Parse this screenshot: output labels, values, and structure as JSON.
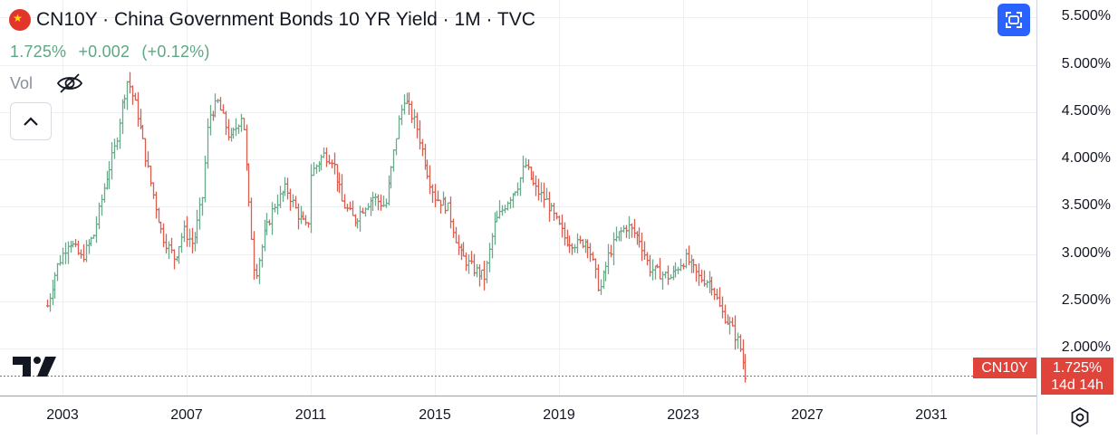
{
  "header": {
    "flag_icon": "china-flag-icon",
    "title": "CN10Y · China Government Bonds 10 YR Yield · 1M · TVC"
  },
  "quote": {
    "last": "1.725%",
    "change": "+0.002",
    "change_pct": "(+0.12%)",
    "color": "#5fa783"
  },
  "volume": {
    "label": "Vol",
    "toggle_icon": "eye-off-icon"
  },
  "controls": {
    "collapse_icon": "chevron-up-icon",
    "fullscreen_icon": "fullscreen-icon",
    "settings_icon": "settings-gear-icon",
    "logo": "tradingview-logo"
  },
  "price_axis": {
    "labels": [
      "5.500%",
      "5.000%",
      "4.500%",
      "4.000%",
      "3.500%",
      "3.000%",
      "2.500%",
      "2.000%"
    ],
    "last_price_label": "1.725%",
    "countdown": "14d 14h",
    "symbol_tag": "CN10Y"
  },
  "time_axis": {
    "labels": [
      "2003",
      "2007",
      "2011",
      "2015",
      "2019",
      "2023",
      "2027",
      "2031"
    ]
  },
  "colors": {
    "up": "#6aaa8b",
    "down": "#dd5d4f",
    "accent": "#2962ff",
    "grid": "#eef0f3"
  },
  "chart_data": {
    "type": "ohlc",
    "symbol": "CN10Y",
    "interval": "1M",
    "ylim": [
      1.5,
      5.6
    ],
    "xlim": [
      2001.7,
      2034.5
    ],
    "price_ticks": [
      2.0,
      2.5,
      3.0,
      3.5,
      4.0,
      4.5,
      5.0,
      5.5
    ],
    "year_ticks": [
      2003,
      2007,
      2011,
      2015,
      2019,
      2023,
      2027,
      2031
    ],
    "grid": true,
    "approx_closes": [
      [
        2002.5,
        2.45
      ],
      [
        2002.8,
        2.85
      ],
      [
        2003.2,
        3.15
      ],
      [
        2003.6,
        2.95
      ],
      [
        2004.0,
        3.2
      ],
      [
        2004.4,
        3.8
      ],
      [
        2004.7,
        4.15
      ],
      [
        2004.9,
        4.55
      ],
      [
        2005.1,
        4.85
      ],
      [
        2005.4,
        4.5
      ],
      [
        2005.8,
        3.8
      ],
      [
        2006.2,
        3.2
      ],
      [
        2006.6,
        2.95
      ],
      [
        2006.9,
        3.25
      ],
      [
        2007.2,
        3.1
      ],
      [
        2007.5,
        3.6
      ],
      [
        2007.7,
        4.45
      ],
      [
        2008.0,
        4.6
      ],
      [
        2008.4,
        4.2
      ],
      [
        2008.8,
        4.5
      ],
      [
        2009.0,
        3.5
      ],
      [
        2009.2,
        2.75
      ],
      [
        2009.5,
        3.2
      ],
      [
        2009.8,
        3.5
      ],
      [
        2010.2,
        3.7
      ],
      [
        2010.6,
        3.4
      ],
      [
        2010.9,
        3.25
      ],
      [
        2011.0,
        3.85
      ],
      [
        2011.4,
        4.05
      ],
      [
        2011.7,
        4.0
      ],
      [
        2012.0,
        3.55
      ],
      [
        2012.4,
        3.35
      ],
      [
        2012.7,
        3.5
      ],
      [
        2013.0,
        3.6
      ],
      [
        2013.4,
        3.5
      ],
      [
        2013.8,
        4.35
      ],
      [
        2014.0,
        4.65
      ],
      [
        2014.4,
        4.35
      ],
      [
        2014.8,
        3.8
      ],
      [
        2015.0,
        3.6
      ],
      [
        2015.4,
        3.5
      ],
      [
        2015.8,
        3.0
      ],
      [
        2016.2,
        2.85
      ],
      [
        2016.6,
        2.75
      ],
      [
        2016.9,
        3.3
      ],
      [
        2017.3,
        3.55
      ],
      [
        2017.7,
        3.75
      ],
      [
        2017.9,
        3.95
      ],
      [
        2018.2,
        3.7
      ],
      [
        2018.6,
        3.55
      ],
      [
        2018.9,
        3.35
      ],
      [
        2019.2,
        3.15
      ],
      [
        2019.6,
        3.1
      ],
      [
        2019.9,
        3.15
      ],
      [
        2020.3,
        2.6
      ],
      [
        2020.6,
        3.0
      ],
      [
        2020.9,
        3.2
      ],
      [
        2021.2,
        3.3
      ],
      [
        2021.6,
        3.15
      ],
      [
        2021.9,
        2.85
      ],
      [
        2022.2,
        2.8
      ],
      [
        2022.6,
        2.75
      ],
      [
        2022.9,
        2.9
      ],
      [
        2023.1,
        2.95
      ],
      [
        2023.5,
        2.75
      ],
      [
        2023.9,
        2.7
      ],
      [
        2024.2,
        2.4
      ],
      [
        2024.5,
        2.25
      ],
      [
        2024.8,
        2.05
      ],
      [
        2025.0,
        1.725
      ]
    ]
  }
}
